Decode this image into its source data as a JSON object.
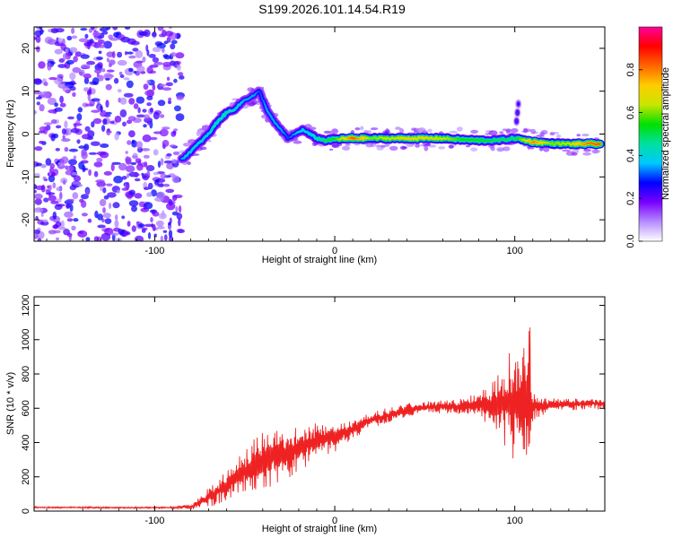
{
  "title": "S199.2026.101.14.54.R19",
  "chart_data": [
    {
      "type": "heatmap",
      "name": "spectrogram",
      "xlabel": "Height of straight line (km)",
      "ylabel": "Frequency (Hz)",
      "xlim": [
        -167,
        150
      ],
      "ylim": [
        -25,
        25
      ],
      "xticks": [
        -100,
        0,
        100
      ],
      "xtick_labels": [
        "-100",
        "0",
        "100"
      ],
      "yticks": [
        -20,
        -10,
        0,
        10,
        20
      ],
      "ytick_labels": [
        "-20",
        "-10",
        "0",
        "10",
        "20"
      ],
      "colorbar": {
        "label": "Normalized spectral amplitude",
        "range": [
          0,
          1
        ],
        "ticks": [
          0,
          0.2,
          0.4,
          0.6,
          0.8
        ],
        "tick_labels": [
          "0.0",
          "0.2",
          "0.4",
          "0.6",
          "0.8"
        ],
        "colors": [
          "#ffffff",
          "#b58cff",
          "#7a00ff",
          "#0000ff",
          "#00c8ff",
          "#00e0a0",
          "#00e000",
          "#c8e600",
          "#ffcc00",
          "#ff6600",
          "#ff0000",
          "#ff0099"
        ]
      },
      "noise_region_x": [
        -167,
        -85
      ],
      "ridge": [
        {
          "x": -85,
          "y": -6,
          "a": 0.35
        },
        {
          "x": -80,
          "y": -4,
          "a": 0.4
        },
        {
          "x": -75,
          "y": -2,
          "a": 0.4
        },
        {
          "x": -70,
          "y": 0,
          "a": 0.4
        },
        {
          "x": -65,
          "y": 3,
          "a": 0.45
        },
        {
          "x": -60,
          "y": 5,
          "a": 0.45
        },
        {
          "x": -55,
          "y": 6,
          "a": 0.4
        },
        {
          "x": -50,
          "y": 8,
          "a": 0.35
        },
        {
          "x": -45,
          "y": 9,
          "a": 0.35
        },
        {
          "x": -42,
          "y": 10,
          "a": 0.3
        },
        {
          "x": -38,
          "y": 6,
          "a": 0.35
        },
        {
          "x": -34,
          "y": 3,
          "a": 0.35
        },
        {
          "x": -30,
          "y": 1,
          "a": 0.35
        },
        {
          "x": -26,
          "y": -1,
          "a": 0.3
        },
        {
          "x": -22,
          "y": 0,
          "a": 0.35
        },
        {
          "x": -18,
          "y": 1,
          "a": 0.4
        },
        {
          "x": -14,
          "y": 0,
          "a": 0.4
        },
        {
          "x": -10,
          "y": -1,
          "a": 0.45
        },
        {
          "x": -5,
          "y": -1.5,
          "a": 0.5
        },
        {
          "x": 0,
          "y": -1.2,
          "a": 0.55
        },
        {
          "x": 10,
          "y": -1,
          "a": 0.85
        },
        {
          "x": 20,
          "y": -1,
          "a": 0.6
        },
        {
          "x": 30,
          "y": -1,
          "a": 0.65
        },
        {
          "x": 40,
          "y": -1,
          "a": 0.7
        },
        {
          "x": 50,
          "y": -1,
          "a": 0.7
        },
        {
          "x": 60,
          "y": -1,
          "a": 0.65
        },
        {
          "x": 70,
          "y": -1.3,
          "a": 0.55
        },
        {
          "x": 80,
          "y": -1.5,
          "a": 0.55
        },
        {
          "x": 90,
          "y": -1.5,
          "a": 0.5
        },
        {
          "x": 100,
          "y": -1,
          "a": 0.5
        },
        {
          "x": 110,
          "y": -1.8,
          "a": 0.8
        },
        {
          "x": 120,
          "y": -2.2,
          "a": 0.6
        },
        {
          "x": 130,
          "y": -2.3,
          "a": 0.65
        },
        {
          "x": 140,
          "y": -2.3,
          "a": 0.8
        },
        {
          "x": 148,
          "y": -2.3,
          "a": 0.85
        }
      ],
      "branch_near_100": [
        {
          "x": 101,
          "y": 3,
          "a": 0.3
        },
        {
          "x": 101.5,
          "y": 5,
          "a": 0.3
        },
        {
          "x": 102,
          "y": 7,
          "a": 0.25
        }
      ]
    },
    {
      "type": "line",
      "name": "snr",
      "xlabel": "Height of straight line (km)",
      "ylabel": "SNR (10 * v/v)",
      "xlim": [
        -167,
        150
      ],
      "ylim": [
        0,
        1250
      ],
      "xticks": [
        -100,
        0,
        100
      ],
      "xtick_labels": [
        "-100",
        "0",
        "100"
      ],
      "yticks": [
        0,
        200,
        400,
        600,
        800,
        1000,
        1200
      ],
      "ytick_labels": [
        "0",
        "200",
        "400",
        "600",
        "800",
        "1000",
        "1200"
      ],
      "line_color": "#ee2222",
      "series_x": [
        -167,
        -120,
        -90,
        -80,
        -70,
        -60,
        -50,
        -40,
        -30,
        -20,
        -10,
        0,
        10,
        20,
        30,
        40,
        50,
        60,
        70,
        80,
        90,
        95,
        100,
        104,
        106,
        108,
        110,
        120,
        130,
        140,
        150
      ],
      "series_y": [
        22,
        20,
        20,
        25,
        80,
        150,
        230,
        300,
        330,
        370,
        410,
        430,
        480,
        530,
        560,
        590,
        605,
        610,
        610,
        620,
        620,
        630,
        640,
        620,
        630,
        620,
        610,
        620,
        620,
        630,
        625
      ],
      "noise_amplitude": [
        5,
        5,
        5,
        15,
        60,
        90,
        130,
        180,
        170,
        140,
        110,
        90,
        60,
        50,
        45,
        40,
        35,
        40,
        45,
        70,
        180,
        300,
        350,
        350,
        500,
        600,
        80,
        40,
        35,
        35,
        35
      ]
    }
  ]
}
